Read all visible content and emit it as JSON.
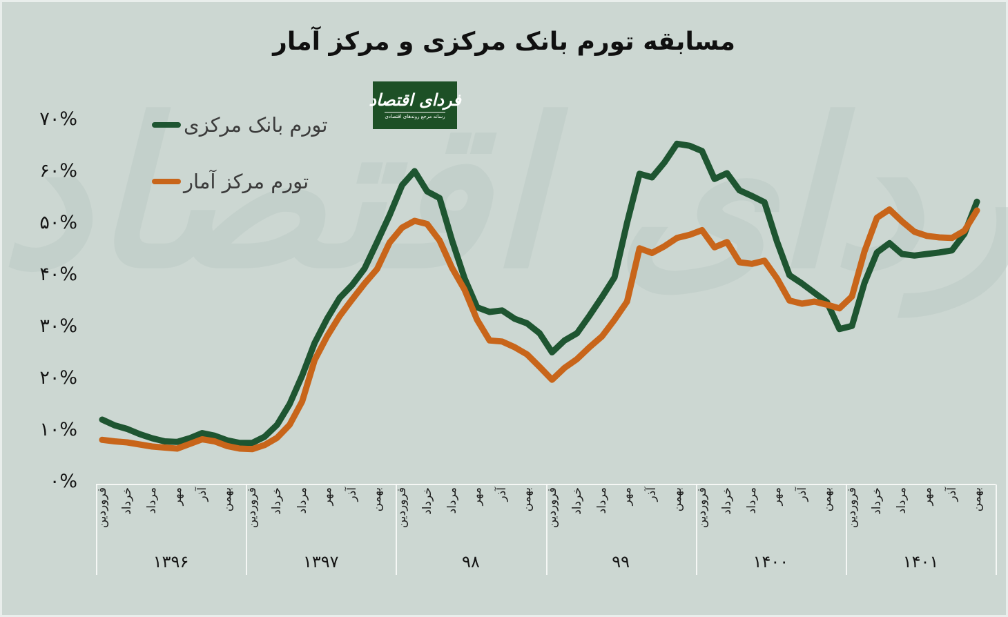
{
  "page": {
    "title": "مسابقه تورم بانک مرکزی و مرکز آمار",
    "background_color": "#ccd7d2"
  },
  "logo": {
    "name": "فردای اقتصاد",
    "tagline": "رسانه مرجع روندهای اقتصادی",
    "background_color": "#1d5026",
    "text_color": "#ffffff"
  },
  "watermark_text": "فردای اقتصاد",
  "legend": {
    "items": [
      {
        "label": "تورم بانک مرکزی",
        "color": "#1e5531"
      },
      {
        "label": "تورم مرکز آمار",
        "color": "#c8651a"
      }
    ]
  },
  "y_axis": {
    "ticks": [
      {
        "label": "۷۰%",
        "value": 70
      },
      {
        "label": "۶۰%",
        "value": 60
      },
      {
        "label": "۵۰%",
        "value": 50
      },
      {
        "label": "۴۰%",
        "value": 40
      },
      {
        "label": "۳۰%",
        "value": 30
      },
      {
        "label": "۲۰%",
        "value": 20
      },
      {
        "label": "۱۰%",
        "value": 10
      },
      {
        "label": "۰%",
        "value": 0
      }
    ]
  },
  "x_axis": {
    "month_tick_labels": [
      "فروردین",
      "خرداد",
      "مرداد",
      "مهر",
      "آذر",
      "بهمن"
    ],
    "month_tick_offsets": [
      0,
      2,
      4,
      6,
      8,
      10
    ],
    "year_labels": [
      "۱۳۹۶",
      "۱۳۹۷",
      "۹۸",
      "۹۹",
      "۱۴۰۰",
      "۱۴۰۱"
    ]
  },
  "chart_data": {
    "type": "line",
    "title": "مسابقه تورم بانک مرکزی و مرکز آمار",
    "x_unit": "monthly, Persian calendar",
    "start_month": "فروردین ۱۳۹۶",
    "end_month": "بهمن ۱۴۰۱",
    "months_per_year": 12,
    "ylim": [
      0,
      70
    ],
    "y_format": "percent",
    "grid": false,
    "legend_position": "top-left",
    "series": [
      {
        "name": "تورم بانک مرکزی",
        "color": "#1e5531",
        "values": [
          12,
          10.9,
          10.2,
          9.2,
          8.4,
          7.8,
          7.7,
          8.4,
          9.4,
          8.9,
          8,
          7.5,
          7.5,
          8.7,
          11,
          15,
          20.5,
          26.8,
          31.5,
          35.5,
          38,
          41.2,
          46.3,
          51.5,
          57.3,
          60,
          56.1,
          54.8,
          46.6,
          39.3,
          33.7,
          32.8,
          33.1,
          31.5,
          30.6,
          28.7,
          25,
          27.3,
          28.7,
          32.1,
          35.7,
          39.5,
          50,
          59.5,
          58.8,
          61.7,
          65.3,
          64.9,
          63.9,
          58.5,
          59.6,
          56.3,
          55.2,
          54,
          46.4,
          39.9,
          38.3,
          36.5,
          34.7,
          29.5,
          30.1,
          38.4,
          44.3,
          46.1,
          44,
          43.7,
          44,
          44.3,
          44.7,
          47.9,
          54.1
        ]
      },
      {
        "name": "تورم مرکز آمار",
        "color": "#c8651a",
        "values": [
          8.1,
          7.8,
          7.6,
          7.2,
          6.8,
          6.6,
          6.4,
          7.3,
          8.2,
          7.8,
          6.9,
          6.4,
          6.3,
          7.1,
          8.5,
          11,
          15.5,
          23.5,
          28.1,
          32,
          35.2,
          38.3,
          41.1,
          46.2,
          49.1,
          50.4,
          49.8,
          46.6,
          41.3,
          37.1,
          31.3,
          27.3,
          27.1,
          26,
          24.6,
          22.2,
          19.7,
          22,
          23.7,
          26,
          28.1,
          31.3,
          34.8,
          45.1,
          44.2,
          45.5,
          47.1,
          47.7,
          48.6,
          45.3,
          46.3,
          42.4,
          42.1,
          42.7,
          39.3,
          35,
          34.4,
          34.8,
          34.2,
          33.5,
          35.8,
          44.5,
          51,
          52.6,
          50.3,
          48.3,
          47.5,
          47.2,
          47.1,
          48.5,
          52.4
        ]
      }
    ]
  }
}
